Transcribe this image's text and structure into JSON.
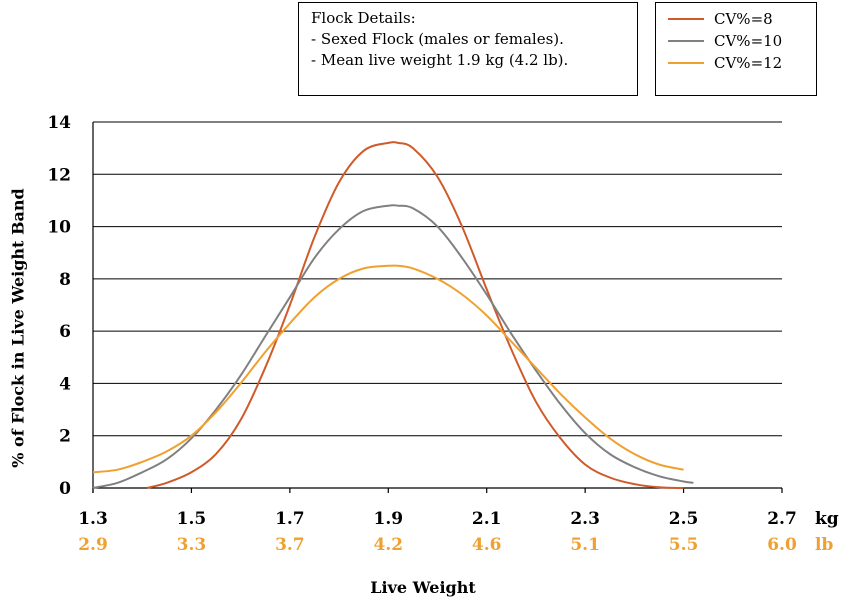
{
  "info_box": {
    "lines": [
      "Flock Details:",
      "- Sexed Flock (males or females).",
      "- Mean live weight 1.9 kg (4.2 lb)."
    ]
  },
  "colors": {
    "kg_labels": "#000000",
    "lb_labels": "#f0a030",
    "grid": "#000000"
  },
  "chart_data": {
    "type": "line",
    "title": "",
    "xlabel": "Live Weight",
    "ylabel": "% of Flock in Live Weight Band",
    "xlim": [
      1.3,
      2.7
    ],
    "ylim": [
      0,
      14
    ],
    "grid": true,
    "legend_position": "top-right",
    "x_ticks_kg": [
      "1.3",
      "1.5",
      "1.7",
      "1.9",
      "2.1",
      "2.3",
      "2.5",
      "2.7"
    ],
    "x_ticks_lb": [
      "2.9",
      "3.3",
      "3.7",
      "4.2",
      "4.6",
      "5.1",
      "5.5",
      "6.0"
    ],
    "x_unit_kg": "kg",
    "x_unit_lb": "lb",
    "y_ticks": [
      "0",
      "2",
      "4",
      "6",
      "8",
      "10",
      "12",
      "14"
    ],
    "series": [
      {
        "name": "CV%=8",
        "color": "#d05a2a",
        "x": [
          1.41,
          1.45,
          1.5,
          1.55,
          1.6,
          1.65,
          1.7,
          1.75,
          1.8,
          1.85,
          1.9,
          1.92,
          1.95,
          2.0,
          2.05,
          2.1,
          2.15,
          2.2,
          2.25,
          2.3,
          2.35,
          2.4,
          2.45,
          2.5
        ],
        "y": [
          0.0,
          0.2,
          0.6,
          1.3,
          2.6,
          4.6,
          7.0,
          9.6,
          11.7,
          12.9,
          13.2,
          13.2,
          13.0,
          11.9,
          10.0,
          7.6,
          5.3,
          3.3,
          1.9,
          0.9,
          0.4,
          0.15,
          0.03,
          0.0
        ]
      },
      {
        "name": "CV%=10",
        "color": "#808080",
        "x": [
          1.3,
          1.35,
          1.4,
          1.45,
          1.5,
          1.55,
          1.6,
          1.65,
          1.7,
          1.75,
          1.8,
          1.85,
          1.9,
          1.92,
          1.95,
          2.0,
          2.05,
          2.1,
          2.15,
          2.2,
          2.25,
          2.3,
          2.35,
          2.4,
          2.45,
          2.5,
          2.52
        ],
        "y": [
          0.0,
          0.2,
          0.6,
          1.1,
          1.9,
          3.0,
          4.3,
          5.8,
          7.3,
          8.8,
          9.9,
          10.6,
          10.8,
          10.8,
          10.7,
          10.0,
          8.8,
          7.4,
          5.9,
          4.5,
          3.2,
          2.1,
          1.3,
          0.8,
          0.45,
          0.25,
          0.2
        ]
      },
      {
        "name": "CV%=12",
        "color": "#f0a030",
        "x": [
          1.3,
          1.35,
          1.4,
          1.45,
          1.5,
          1.55,
          1.6,
          1.65,
          1.7,
          1.75,
          1.8,
          1.85,
          1.9,
          1.92,
          1.95,
          2.0,
          2.05,
          2.1,
          2.15,
          2.2,
          2.25,
          2.3,
          2.35,
          2.4,
          2.45,
          2.5
        ],
        "y": [
          0.6,
          0.7,
          1.0,
          1.4,
          2.0,
          2.9,
          4.0,
          5.2,
          6.3,
          7.3,
          8.0,
          8.4,
          8.5,
          8.5,
          8.4,
          8.0,
          7.4,
          6.6,
          5.6,
          4.6,
          3.6,
          2.7,
          1.9,
          1.3,
          0.9,
          0.7
        ]
      }
    ]
  }
}
